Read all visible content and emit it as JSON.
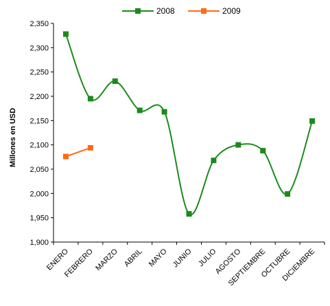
{
  "chart_data": {
    "type": "line",
    "title": "",
    "xlabel": "",
    "ylabel": "Millones en USD",
    "categories": [
      "ENERO",
      "FEBRERO",
      "MARZO",
      "ABRIL",
      "MAYO",
      "JUNIO",
      "JULIO",
      "AGOSTO",
      "SEPTIEMBRE",
      "OCTUBRE",
      "DICIEMBRE"
    ],
    "ylim": [
      1900,
      2350
    ],
    "yticks": [
      "1,900",
      "1,950",
      "2,000",
      "2,050",
      "2,100",
      "2,150",
      "2,200",
      "2,250",
      "2,300",
      "2,350"
    ],
    "grid": false,
    "legend_position": "top",
    "smooth": true,
    "series": [
      {
        "name": "2008",
        "color": "#1a8a1a",
        "marker": "square",
        "values": [
          2328,
          2195,
          2231,
          2171,
          2168,
          1958,
          2068,
          2100,
          2088,
          1999,
          2149
        ]
      },
      {
        "name": "2009",
        "color": "#ff6a13",
        "marker": "square",
        "values": [
          2076,
          2094,
          null,
          null,
          null,
          null,
          null,
          null,
          null,
          null,
          null
        ]
      }
    ]
  }
}
